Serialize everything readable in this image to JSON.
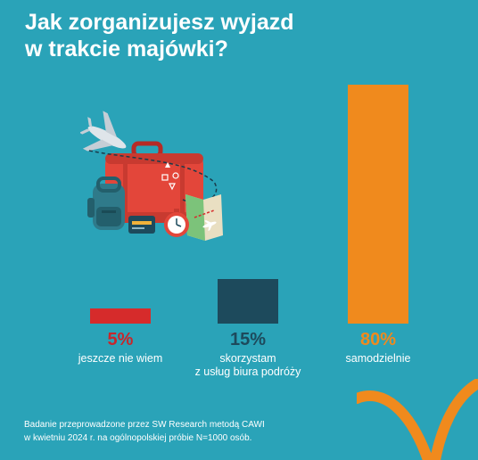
{
  "title_line1": "Jak zorganizujesz wyjazd",
  "title_line2": "w trakcie majówki?",
  "chart_data": {
    "type": "bar",
    "categories": [
      "jeszcze nie wiem",
      "skorzystam z usług biura podróży",
      "samodzielnie"
    ],
    "category_lines": [
      [
        "jeszcze nie wiem"
      ],
      [
        "skorzystam",
        "z usług biura podróży"
      ],
      [
        "samodzielnie"
      ]
    ],
    "values": [
      5,
      15,
      80
    ],
    "value_labels": [
      "5%",
      "15%",
      "80%"
    ],
    "colors": [
      "#d62b2b",
      "#1d4a5c",
      "#f08a1d"
    ],
    "label_colors": [
      "#c8262b",
      "#1d4a5c",
      "#f08a1d"
    ],
    "ylim": [
      0,
      80
    ],
    "xlabel": "",
    "ylabel": "",
    "grid": false,
    "legend": "none"
  },
  "footnote_line1": "Badanie przeprowadzone przez SW Research metodą CAWI",
  "footnote_line2": "w kwietniu 2024 r. na ogólnopolskiej próbie N=1000 osób.",
  "illustration": "travel-suitcase-airplane-backpack-map-clock",
  "colors": {
    "background": "#2aa3b8",
    "accent_orange": "#f08a1d",
    "accent_red": "#d62b2b",
    "accent_navy": "#1d4a5c"
  }
}
